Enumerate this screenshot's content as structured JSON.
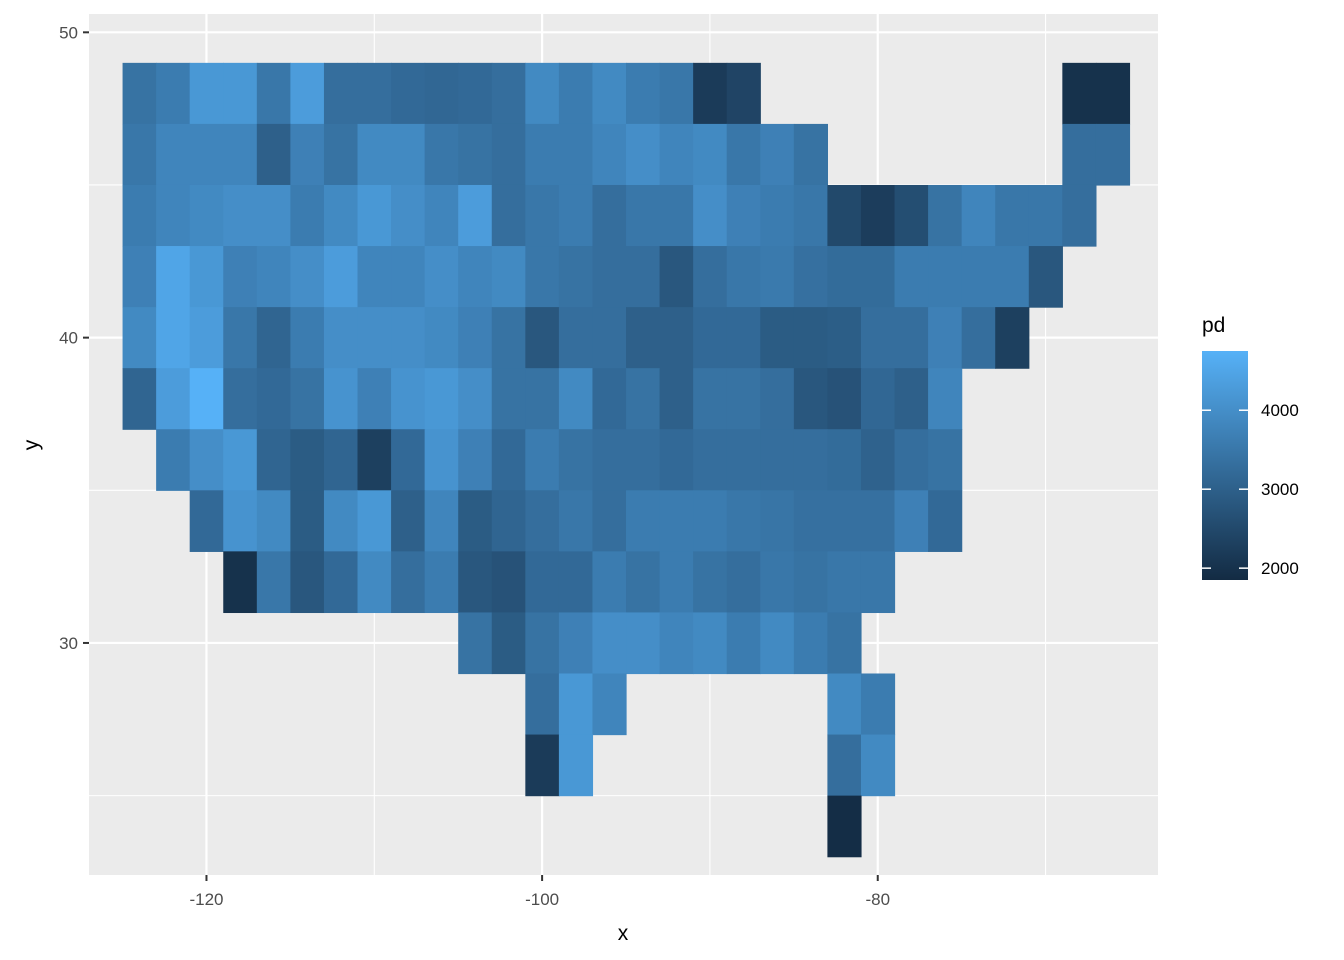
{
  "chart_data": {
    "type": "heatmap",
    "xlabel": "x",
    "ylabel": "y",
    "xlim": [
      -127,
      -63.3
    ],
    "ylim": [
      22.4,
      50.6
    ],
    "x_ticks": [
      -120,
      -100,
      -80
    ],
    "x_tick_labels": [
      "-120",
      "-100",
      "-80"
    ],
    "y_ticks": [
      30,
      40,
      50
    ],
    "y_tick_labels": [
      "30",
      "40",
      "50"
    ],
    "grid": true,
    "cell_width": 2,
    "cell_height": 2,
    "color_scale": {
      "low": "#132B43",
      "high": "#56B1F7",
      "min": 1850,
      "max": 4750
    },
    "legend": {
      "title": "pd",
      "position": "right",
      "breaks": [
        2000,
        3000,
        4000
      ],
      "break_labels": [
        "2000",
        "3000",
        "4000"
      ]
    },
    "rows": [
      {
        "y": 48,
        "x_start": -124,
        "values": [
          3400,
          3600,
          4200,
          4200,
          3500,
          4300,
          3300,
          3300,
          3200,
          3150,
          3200,
          3300,
          3900,
          3600,
          3900,
          3600,
          3500,
          2200,
          2400
        ]
      },
      {
        "y": 48,
        "x_start": -68,
        "values": [
          2000,
          2000
        ]
      },
      {
        "y": 46,
        "x_start": -124,
        "values": [
          3500,
          3800,
          3800,
          3800,
          3000,
          3700,
          3400,
          3900,
          3900,
          3500,
          3400,
          3300,
          3600,
          3600,
          3800,
          4000,
          3800,
          3900,
          3500,
          3700,
          3400
        ]
      },
      {
        "y": 46,
        "x_start": -68,
        "values": [
          3300,
          3300
        ]
      },
      {
        "y": 44,
        "x_start": -124,
        "values": [
          3600,
          3800,
          3900,
          4000,
          4000,
          3600,
          3900,
          4200,
          4000,
          3800,
          4300,
          3300,
          3500,
          3600,
          3300,
          3500,
          3500,
          4000,
          3700,
          3600,
          3500,
          2500,
          2250,
          2600,
          3400,
          3800,
          3500,
          3500,
          3300
        ]
      },
      {
        "y": 42,
        "x_start": -124,
        "values": [
          3700,
          4500,
          4200,
          3700,
          3800,
          4000,
          4300,
          3800,
          3800,
          4000,
          3800,
          3900,
          3500,
          3400,
          3300,
          3300,
          2800,
          3300,
          3500,
          3550,
          3350,
          3250,
          3250,
          3600,
          3600,
          3600,
          3600,
          2800
        ]
      },
      {
        "y": 40,
        "x_start": -124,
        "values": [
          3900,
          4500,
          4300,
          3500,
          3100,
          3600,
          4000,
          4000,
          4000,
          3900,
          3700,
          3400,
          2800,
          3300,
          3300,
          3000,
          3000,
          3200,
          3200,
          2900,
          2900,
          2950,
          3300,
          3300,
          3700,
          3300,
          2300
        ]
      },
      {
        "y": 38,
        "x_start": -124,
        "values": [
          3100,
          4300,
          4750,
          3300,
          3200,
          3400,
          4100,
          3700,
          4100,
          4200,
          4000,
          3400,
          3400,
          3900,
          3200,
          3400,
          3000,
          3400,
          3400,
          3300,
          2800,
          2700,
          3150,
          3000,
          3800
        ]
      },
      {
        "y": 36,
        "x_start": -122,
        "values": [
          3600,
          4000,
          4200,
          3100,
          2900,
          3100,
          2300,
          3200,
          4100,
          3700,
          3200,
          3600,
          3400,
          3300,
          3300,
          3200,
          3300,
          3300,
          3300,
          3300,
          3250,
          3050,
          3300,
          3400
        ]
      },
      {
        "y": 34,
        "x_start": -120,
        "values": [
          3200,
          4100,
          3900,
          2900,
          3900,
          4200,
          3000,
          3800,
          2900,
          3100,
          3300,
          3500,
          3300,
          3600,
          3600,
          3600,
          3500,
          3450,
          3350,
          3350,
          3350,
          3700,
          3200
        ]
      },
      {
        "y": 32,
        "x_start": -118,
        "values": [
          2000,
          3500,
          2800,
          3200,
          3900,
          3300,
          3600,
          2800,
          2700,
          3200,
          3200,
          3600,
          3400,
          3600,
          3400,
          3300,
          3500,
          3400,
          3500,
          3500
        ]
      },
      {
        "y": 30,
        "x_start": -104,
        "values": [
          3400,
          2900,
          3400,
          3700,
          4000,
          4000,
          3800,
          3900,
          3600,
          3900,
          3600,
          3400
        ]
      },
      {
        "y": 28,
        "x_start": -100,
        "values": [
          3300,
          4200,
          3800
        ]
      },
      {
        "y": 28,
        "x_start": -82,
        "values": [
          3900,
          3600
        ]
      },
      {
        "y": 26,
        "x_start": -100,
        "values": [
          2200,
          4200
        ]
      },
      {
        "y": 26,
        "x_start": -82,
        "values": [
          3300,
          3900
        ]
      },
      {
        "y": 24,
        "x_start": -82,
        "values": [
          1900
        ]
      }
    ]
  }
}
